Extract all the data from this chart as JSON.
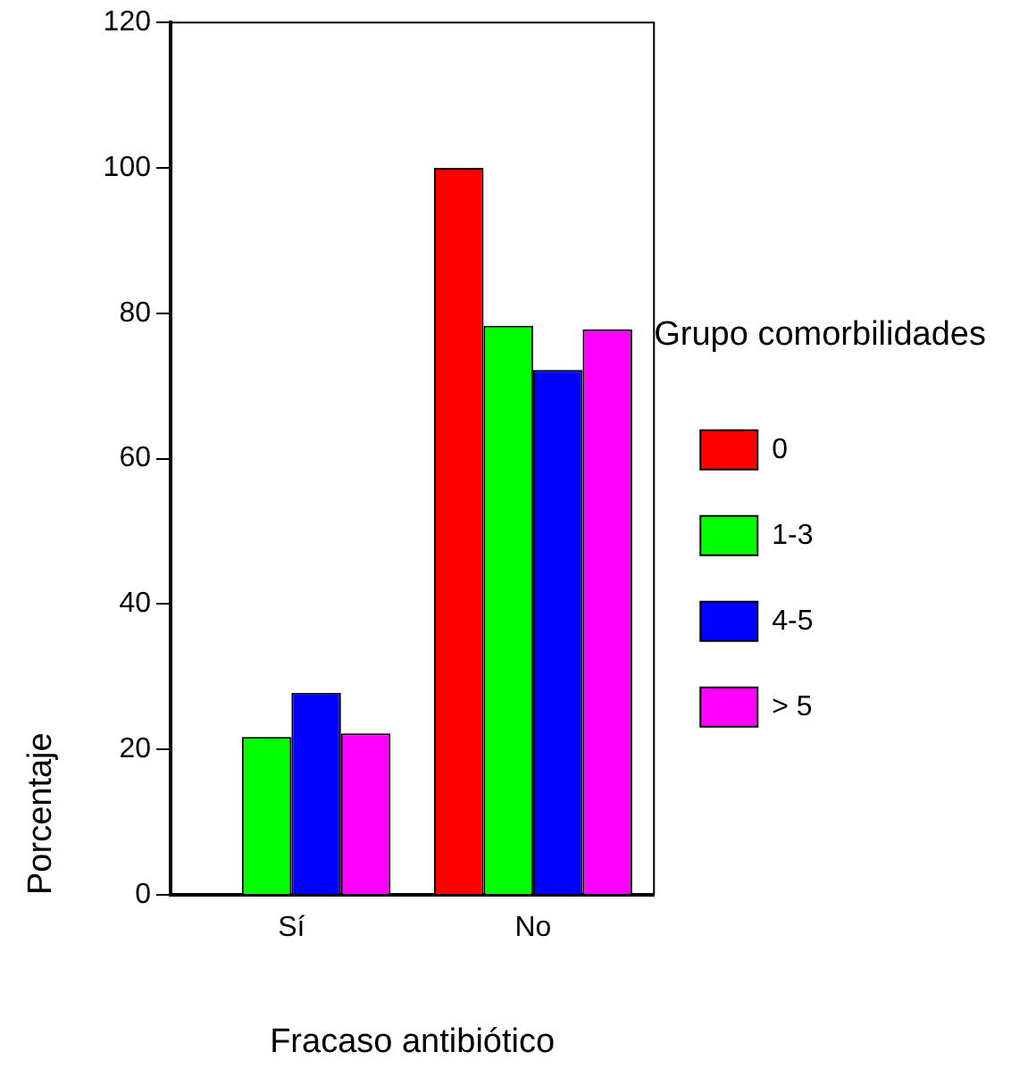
{
  "chart_data": {
    "type": "bar",
    "xlabel": "Fracaso antibiótico",
    "ylabel": "Porcentaje",
    "legend_title": "Grupo comorbilidades",
    "categories": [
      "Sí",
      "No"
    ],
    "series": [
      {
        "name": "0",
        "color": "#ff0000",
        "values": [
          0,
          100
        ]
      },
      {
        "name": "1-3",
        "color": "#00ff00",
        "values": [
          21.7,
          78.3
        ]
      },
      {
        "name": "4-5",
        "color": "#0000ff",
        "values": [
          27.8,
          72.2
        ]
      },
      {
        "name": "> 5",
        "color": "#ff00ff",
        "values": [
          22.2,
          77.8
        ]
      }
    ],
    "ylim": [
      0,
      120
    ],
    "yticks": [
      0,
      20,
      40,
      60,
      80,
      100,
      120
    ],
    "grid": false,
    "legend": "right"
  }
}
